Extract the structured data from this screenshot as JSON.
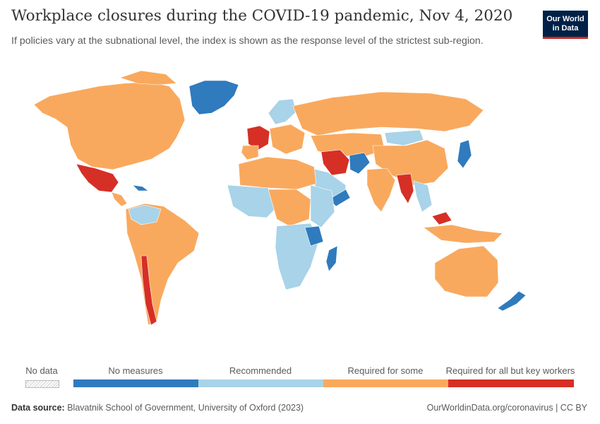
{
  "header": {
    "title": "Workplace closures during the COVID-19 pandemic, Nov 4, 2020",
    "subtitle": "If policies vary at the subnational level, the index is shown as the response level of the strictest sub-region.",
    "logo_line1": "Our World",
    "logo_line2": "in Data"
  },
  "colors": {
    "no_measures": "#2f7bbd",
    "recommended": "#a8d3e8",
    "required_for_some": "#f9a95e",
    "required_for_all": "#d62f26",
    "no_data": "#e6e6e6"
  },
  "legend": {
    "no_data": "No data",
    "bins": [
      {
        "label": "No measures",
        "color": "#2f7bbd"
      },
      {
        "label": "Recommended",
        "color": "#a8d3e8"
      },
      {
        "label": "Required for some",
        "color": "#f9a95e"
      },
      {
        "label": "Required for all but key workers",
        "color": "#d62f26"
      }
    ]
  },
  "footer": {
    "source_label": "Data source:",
    "source_text": "Blavatnik School of Government, University of Oxford (2023)",
    "link": "OurWorldinData.org/coronavirus | CC BY"
  }
}
